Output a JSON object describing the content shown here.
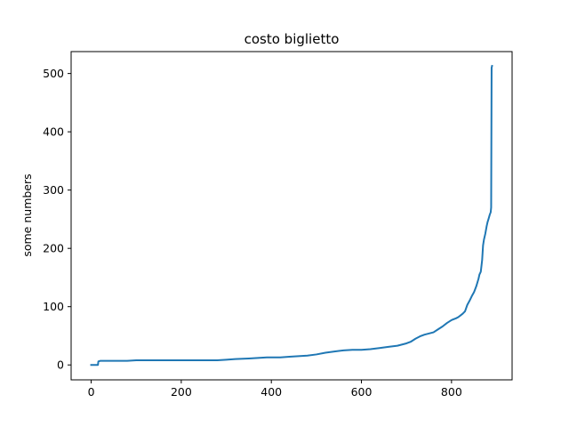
{
  "chart_data": {
    "type": "line",
    "title": "costo biglietto",
    "xlabel": "",
    "ylabel": "some numbers",
    "xlim": [
      -44.5,
      934.5
    ],
    "ylim": [
      -25.6,
      537.6
    ],
    "x_ticks": [
      0,
      200,
      400,
      600,
      800
    ],
    "y_ticks": [
      0,
      100,
      200,
      300,
      400,
      500
    ],
    "x_tick_labels": [
      "0",
      "200",
      "400",
      "600",
      "800"
    ],
    "y_tick_labels": [
      "0",
      "100",
      "200",
      "300",
      "400",
      "500"
    ],
    "grid": false,
    "colors": {
      "line": "#1f77b4",
      "axes": "#000000"
    },
    "series": [
      {
        "x": [
          0,
          15,
          16,
          20,
          40,
          60,
          80,
          100,
          150,
          200,
          250,
          280,
          300,
          320,
          350,
          370,
          390,
          420,
          440,
          460,
          480,
          500,
          520,
          540,
          560,
          580,
          600,
          620,
          640,
          660,
          680,
          700,
          710,
          720,
          730,
          740,
          760,
          770,
          780,
          790,
          800,
          810,
          815,
          820,
          825,
          830,
          835,
          840,
          845,
          850,
          855,
          860,
          862,
          865,
          868,
          870,
          872,
          875,
          878,
          880,
          882,
          885,
          887,
          888,
          889,
          890
        ],
        "values": [
          0,
          0,
          6,
          7,
          7,
          7,
          7,
          8,
          8,
          8,
          8,
          8,
          9,
          10,
          11,
          12,
          13,
          13,
          14,
          15,
          16,
          18,
          21,
          23,
          25,
          26,
          26,
          27,
          29,
          31,
          33,
          37,
          40,
          45,
          49,
          52,
          56,
          61,
          66,
          72,
          77,
          80,
          82,
          85,
          88,
          92,
          103,
          110,
          118,
          125,
          135,
          148,
          155,
          160,
          180,
          205,
          215,
          225,
          238,
          245,
          250,
          258,
          262,
          270,
          510,
          513
        ]
      }
    ]
  }
}
